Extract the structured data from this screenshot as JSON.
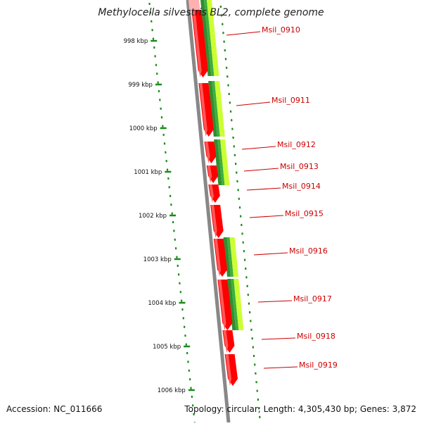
{
  "title": "Methylocella silvestris BL2, complete genome",
  "accession": "Accession: NC_011666",
  "topology": "Topology: circular; Length: 4,305,430 bp; Genes: 3,872",
  "colors": {
    "backbone": "#888888",
    "gene_forward": "#ff0000",
    "gene_shadow": "#ffb0b0",
    "feature_dark": "#2f8f2f",
    "feature_light": "#ccff33",
    "tick": "#1a8a1a",
    "label": "#cc0000"
  },
  "scale_ticks": [
    {
      "label": "998 kbp"
    },
    {
      "label": "999 kbp"
    },
    {
      "label": "1000 kbp"
    },
    {
      "label": "1001 kbp"
    },
    {
      "label": "1002 kbp"
    },
    {
      "label": "1003 kbp"
    },
    {
      "label": "1004 kbp"
    },
    {
      "label": "1005 kbp"
    },
    {
      "label": "1006 kbp"
    }
  ],
  "genes": [
    {
      "label": "Msil_0910"
    },
    {
      "label": "Msil_0911"
    },
    {
      "label": "Msil_0912"
    },
    {
      "label": "Msil_0913"
    },
    {
      "label": "Msil_0914"
    },
    {
      "label": "Msil_0915"
    },
    {
      "label": "Msil_0916"
    },
    {
      "label": "Msil_0917"
    },
    {
      "label": "Msil_0918"
    },
    {
      "label": "Msil_0919"
    }
  ]
}
